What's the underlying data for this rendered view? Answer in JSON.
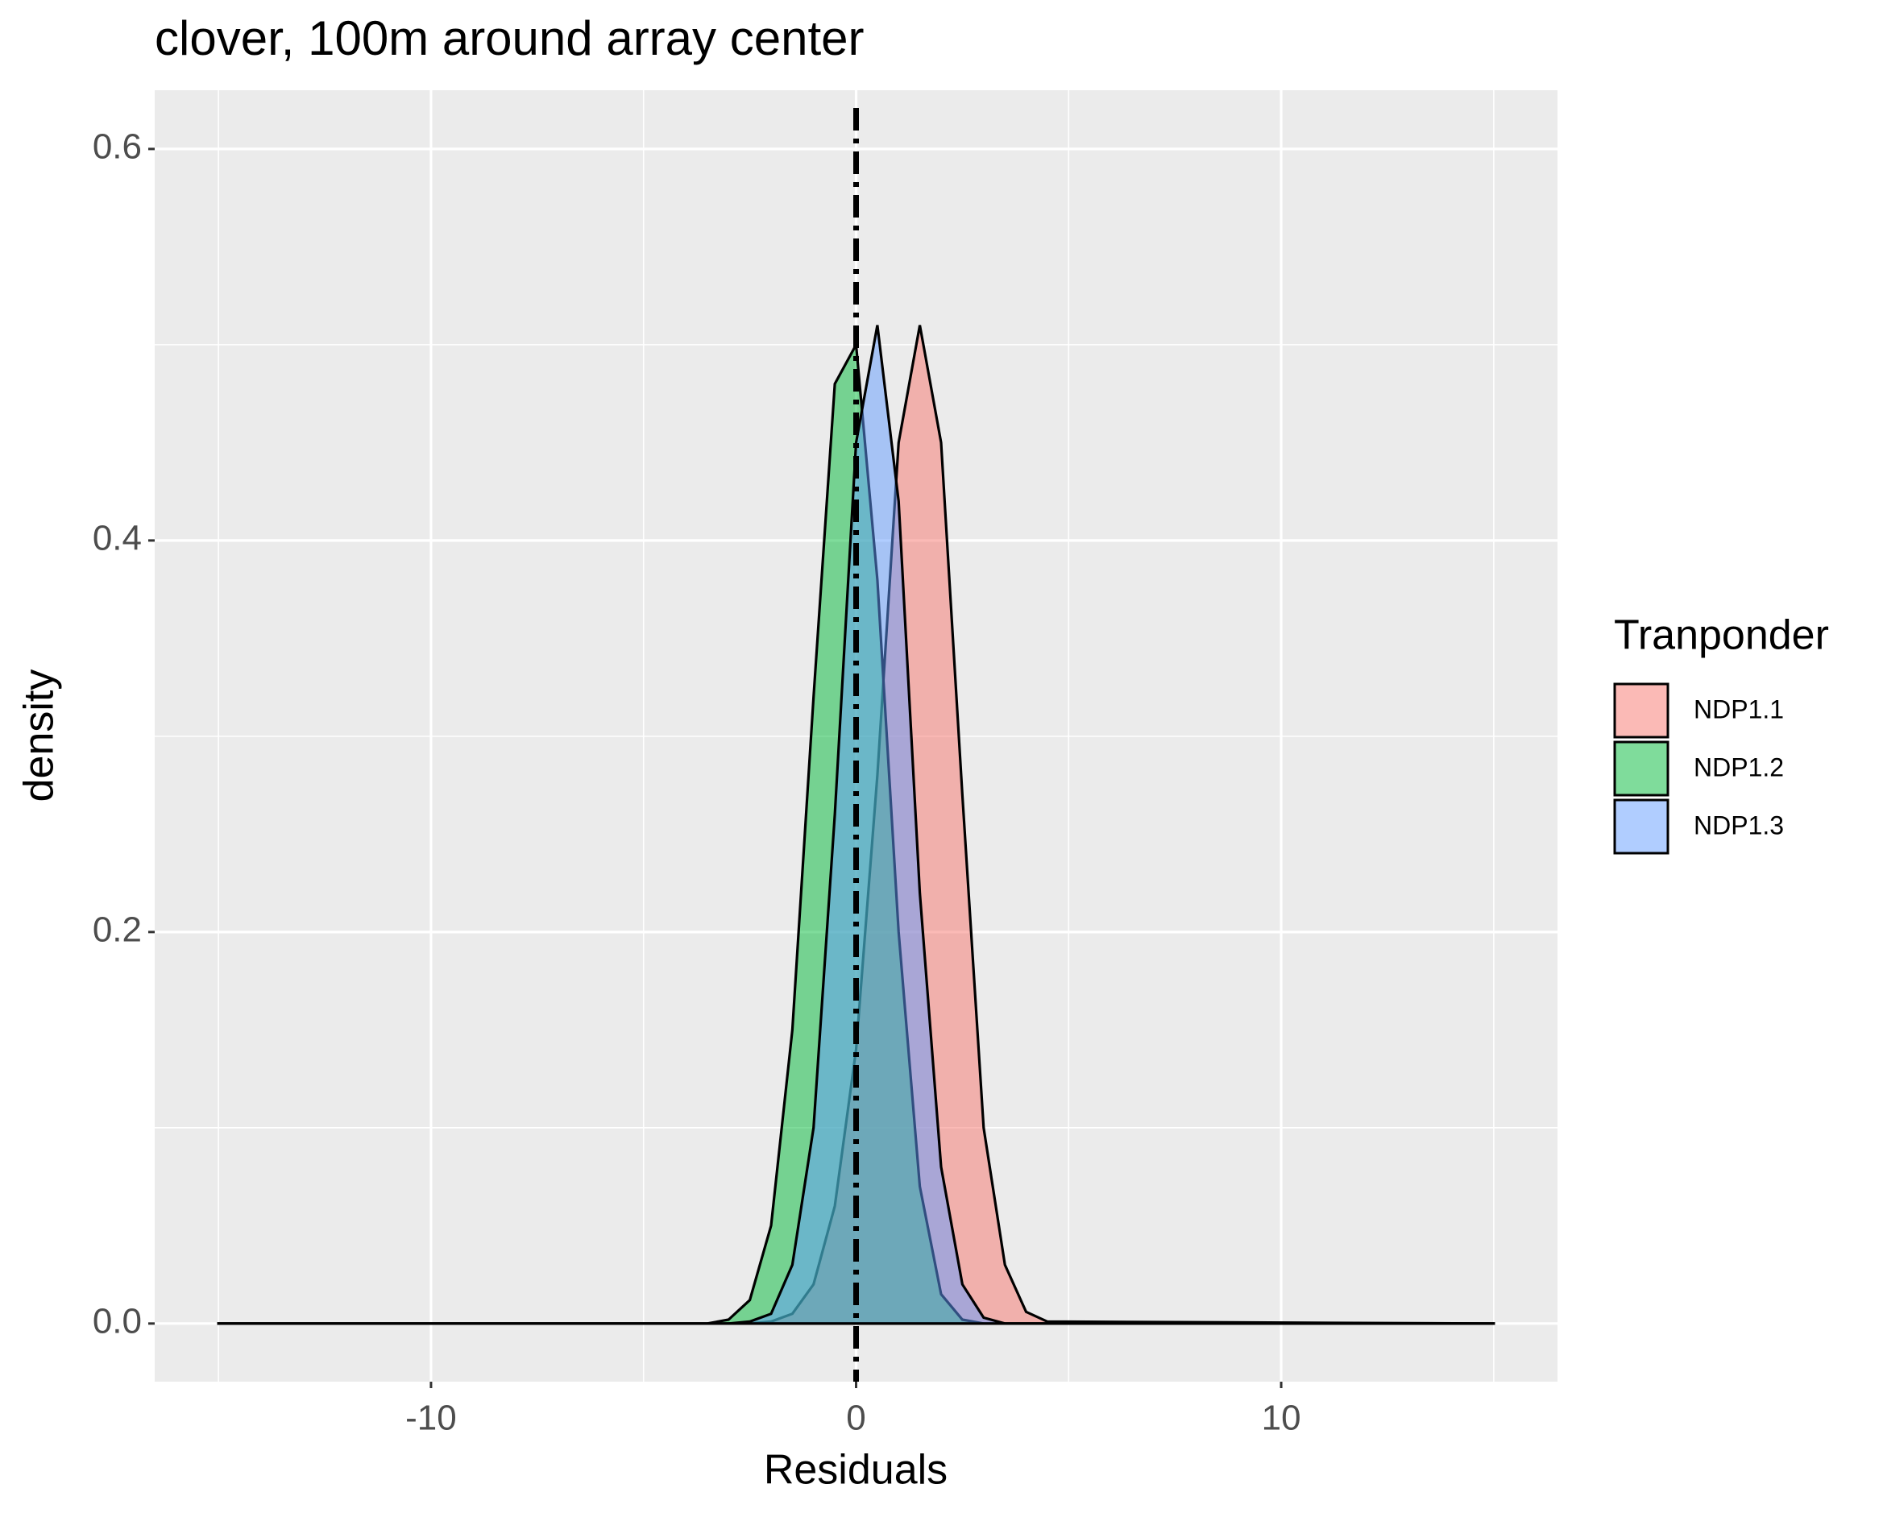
{
  "chart_data": {
    "type": "area",
    "title": "clover, 100m around array center",
    "x_label": "Residuals",
    "y_label": "density",
    "legend_title": "Tranponder",
    "x": [
      -15,
      -4,
      -3.5,
      -3,
      -2.5,
      -2,
      -1.5,
      -1,
      -0.5,
      0,
      0.5,
      1,
      1.5,
      2,
      2.5,
      3,
      3.5,
      4,
      4.5,
      15
    ],
    "series": [
      {
        "name": "NDP1.1",
        "color": "#F8766D",
        "values": [
          0,
          0,
          0,
          0,
          0,
          0.001,
          0.005,
          0.02,
          0.06,
          0.14,
          0.28,
          0.45,
          0.51,
          0.45,
          0.27,
          0.1,
          0.03,
          0.006,
          0.001,
          0
        ]
      },
      {
        "name": "NDP1.2",
        "color": "#00BA38",
        "values": [
          0,
          0,
          0,
          0.002,
          0.012,
          0.05,
          0.15,
          0.32,
          0.48,
          0.5,
          0.38,
          0.2,
          0.07,
          0.015,
          0.002,
          0,
          0,
          0,
          0,
          0
        ]
      },
      {
        "name": "NDP1.3",
        "color": "#619CFF",
        "values": [
          0,
          0,
          0,
          0,
          0.001,
          0.005,
          0.03,
          0.1,
          0.26,
          0.45,
          0.51,
          0.42,
          0.22,
          0.08,
          0.02,
          0.003,
          0,
          0,
          0,
          0
        ]
      }
    ],
    "vline": 0,
    "xlim": [
      -16.5,
      16.5
    ],
    "xticks": [
      -10,
      0,
      10
    ],
    "ylim": [
      -0.0297,
      0.63
    ],
    "yticks": [
      {
        "value": 0,
        "label": "0.0"
      },
      0.2,
      0.4,
      0.6
    ],
    "grid": true,
    "legend": "right"
  }
}
